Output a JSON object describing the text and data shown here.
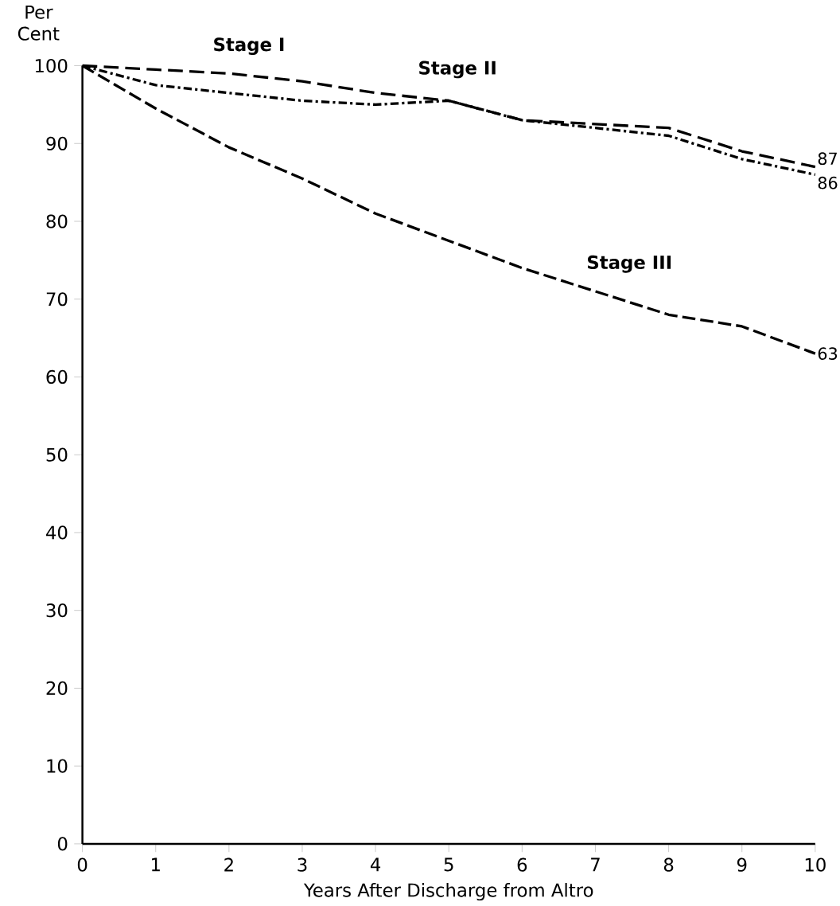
{
  "chart_data": {
    "type": "line",
    "ylabel": "Per Cent",
    "xlabel": "Years After Discharge from Altro",
    "x": [
      0,
      1,
      2,
      3,
      4,
      5,
      6,
      7,
      8,
      9,
      10
    ],
    "xlim": [
      0,
      10
    ],
    "xticks": [
      0,
      1,
      2,
      3,
      4,
      5,
      6,
      7,
      8,
      9,
      10
    ],
    "ylim": [
      0,
      100
    ],
    "yticks": [
      0,
      10,
      20,
      30,
      40,
      50,
      60,
      70,
      80,
      90,
      100
    ],
    "grid": false,
    "legend": false,
    "marker": "none",
    "line_style": "dashed",
    "series": [
      {
        "name": "Stage I",
        "color": "#000000",
        "values": [
          100,
          99.5,
          99,
          98,
          96.5,
          95.5,
          93,
          92.5,
          92,
          89,
          87
        ],
        "value_labels": [
          null,
          null,
          null,
          null,
          null,
          null,
          null,
          null,
          null,
          null,
          "87"
        ]
      },
      {
        "name": "Stage II",
        "color": "#000000",
        "values": [
          100,
          97.5,
          96.5,
          95.5,
          95,
          95.5,
          93,
          92,
          91,
          88,
          86
        ],
        "value_labels": [
          null,
          null,
          null,
          null,
          null,
          null,
          null,
          null,
          null,
          null,
          "86"
        ]
      },
      {
        "name": "Stage III",
        "color": "#000000",
        "values": [
          100,
          94.5,
          89.5,
          85.5,
          81,
          77.5,
          74,
          71,
          68,
          66.5,
          63
        ],
        "value_labels": [
          null,
          null,
          null,
          null,
          null,
          null,
          null,
          null,
          null,
          null,
          "63"
        ]
      }
    ]
  }
}
